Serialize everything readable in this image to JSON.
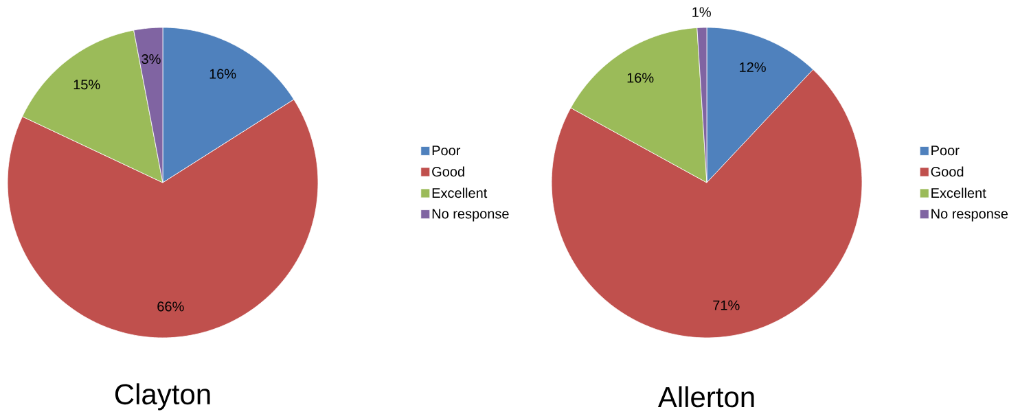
{
  "chart_data": [
    {
      "type": "pie",
      "title": "Clayton",
      "categories": [
        "Poor",
        "Good",
        "Excellent",
        "No response"
      ],
      "values": [
        16,
        66,
        15,
        3
      ],
      "colors": [
        "#4f81bd",
        "#c0504d",
        "#9bbb59",
        "#8064a2"
      ],
      "value_labels": [
        "16%",
        "66%",
        "15%",
        "3%"
      ],
      "legend": "right"
    },
    {
      "type": "pie",
      "title": "Allerton",
      "categories": [
        "Poor",
        "Good",
        "Excellent",
        "No response"
      ],
      "values": [
        12,
        71,
        16,
        1
      ],
      "colors": [
        "#4f81bd",
        "#c0504d",
        "#9bbb59",
        "#8064a2"
      ],
      "value_labels": [
        "12%",
        "71%",
        "16%",
        "1%"
      ],
      "legend": "right"
    }
  ]
}
